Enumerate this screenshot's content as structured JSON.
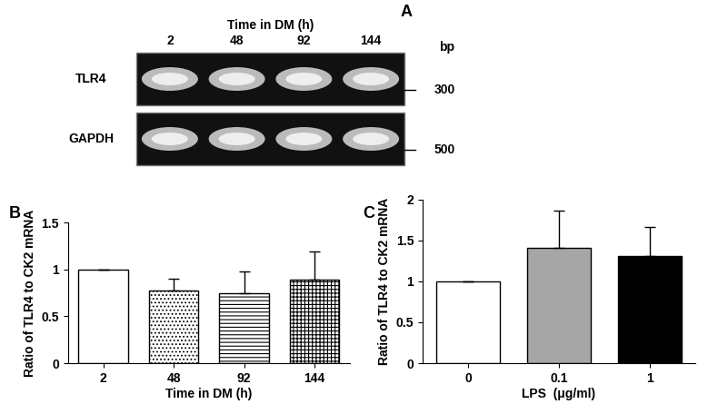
{
  "gel": {
    "panel_label": "A",
    "title": "Time in DM (h)",
    "lanes": [
      "2",
      "48",
      "92",
      "144"
    ],
    "size_header": "bp",
    "rows": [
      {
        "label": "TLR4",
        "size": "300"
      },
      {
        "label": "GAPDH",
        "size": "500"
      }
    ]
  },
  "chart_data": [
    {
      "panel_label": "B",
      "type": "bar",
      "categories": [
        "2",
        "48",
        "92",
        "144"
      ],
      "values": [
        1,
        0.78,
        0.75,
        0.89
      ],
      "errors": [
        0,
        0.12,
        0.23,
        0.3
      ],
      "colors": [
        "#ffffff",
        "#ffffff",
        "#ffffff",
        "#ffffff"
      ],
      "x_label": "Time in DM (h)",
      "y_label": "Ratio of TLR4 to CK2 mRNA",
      "ylim": [
        0,
        1.5
      ],
      "yticks": [
        0,
        0.5,
        1,
        1.5
      ]
    },
    {
      "panel_label": "C",
      "type": "bar",
      "categories": [
        "0",
        "0.1",
        "1"
      ],
      "values": [
        1,
        1.41,
        1.31
      ],
      "errors": [
        0,
        0.45,
        0.35
      ],
      "colors": [
        "#ffffff",
        "#a6a6a6",
        "#000000"
      ],
      "x_label": "LPS  (μg/ml)",
      "y_label": "Ratio of TLR4 to CK2 mRNA",
      "ylim": [
        0,
        2
      ],
      "yticks": [
        0,
        0.5,
        1,
        1.5,
        2
      ]
    }
  ]
}
